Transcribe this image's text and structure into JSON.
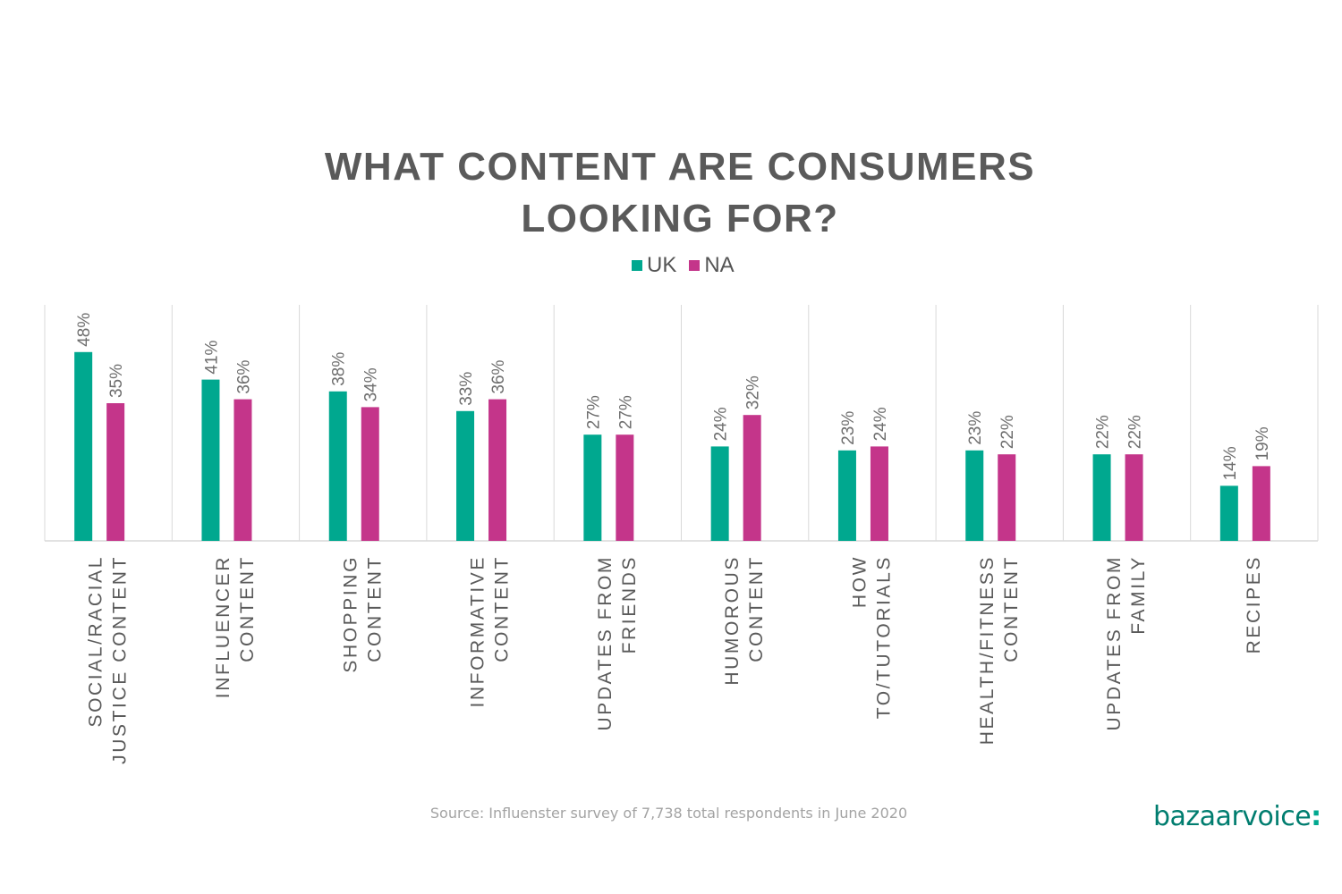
{
  "title_lines": [
    "WHAT CONTENT ARE CONSUMERS",
    "LOOKING FOR?"
  ],
  "source": "Source: Influenster survey of 7,738 total respondents in June 2020",
  "logo": {
    "name": "bazaarvoice",
    "mark": ":"
  },
  "colors": {
    "UK": "#00a88f",
    "NA": "#c4358a",
    "text": "#5a5a5a",
    "grid": "#d9d9d9"
  },
  "chart_data": {
    "type": "bar",
    "title": "WHAT CONTENT ARE CONSUMERS LOOKING FOR?",
    "categories": [
      [
        "SOCIAL/RACIAL",
        "JUSTICE CONTENT"
      ],
      [
        "INFLUENCER",
        "CONTENT"
      ],
      [
        "SHOPPING",
        "CONTENT"
      ],
      [
        "INFORMATIVE",
        "CONTENT"
      ],
      [
        "UPDATES FROM",
        "FRIENDS"
      ],
      [
        "HUMOROUS",
        "CONTENT"
      ],
      [
        "HOW",
        "TO/TUTORIALS"
      ],
      [
        "HEALTH/FITNESS",
        "CONTENT"
      ],
      [
        "UPDATES FROM",
        "FAMILY"
      ],
      [
        "RECIPES"
      ]
    ],
    "series": [
      {
        "name": "UK",
        "values": [
          48,
          41,
          38,
          33,
          27,
          24,
          23,
          23,
          22,
          14
        ]
      },
      {
        "name": "NA",
        "values": [
          35,
          36,
          34,
          36,
          27,
          32,
          24,
          22,
          22,
          19
        ]
      }
    ],
    "value_suffix": "%",
    "ylim": [
      0,
      60
    ],
    "legend": "top-center",
    "grid": "vertical category separators"
  }
}
